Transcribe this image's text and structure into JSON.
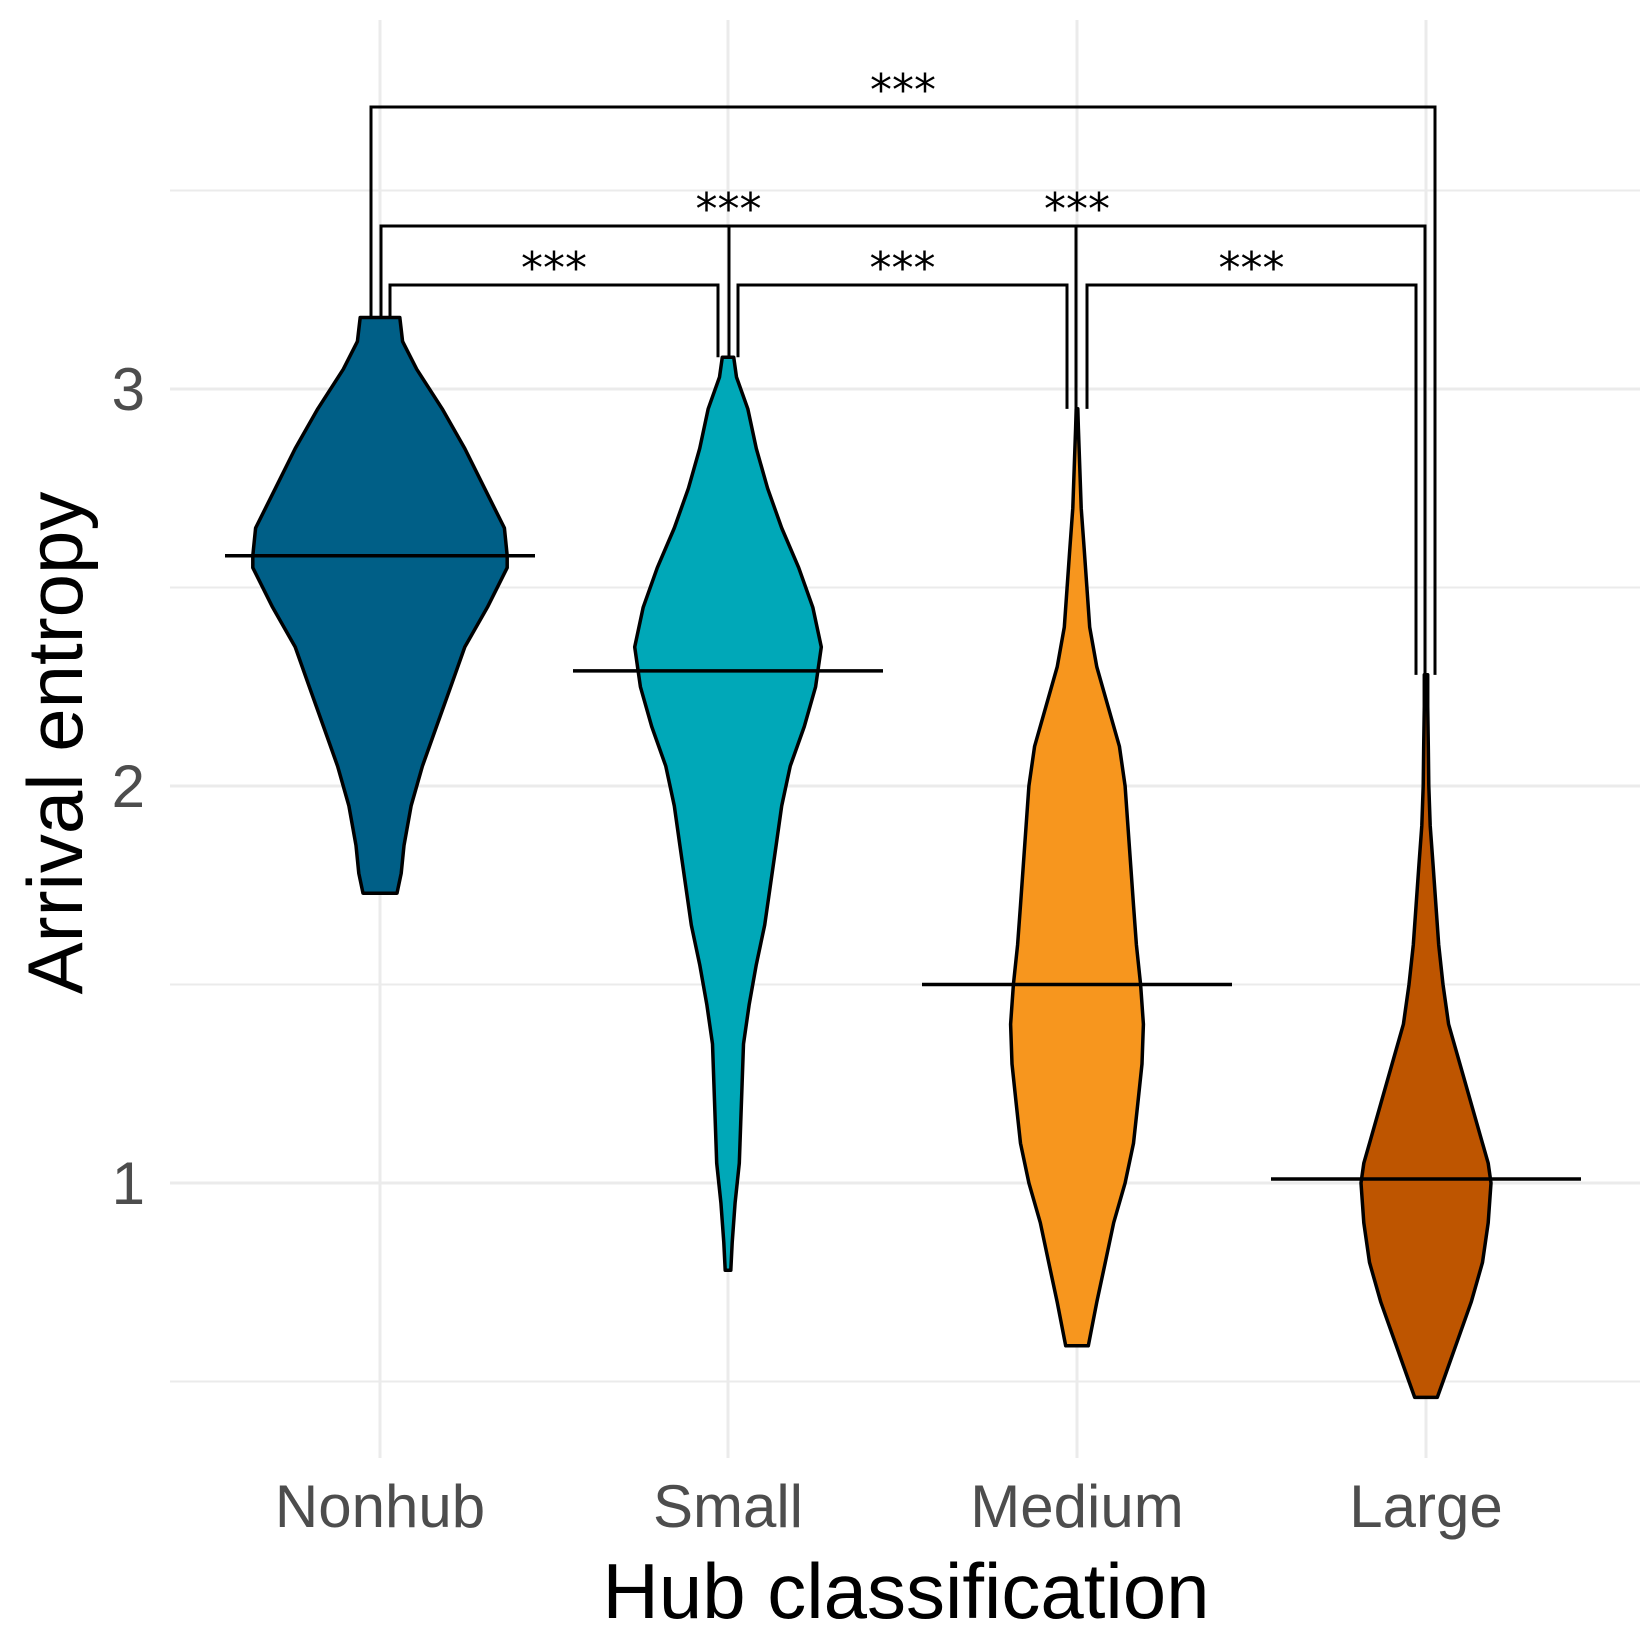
{
  "chart_data": {
    "type": "violin",
    "xlabel": "Hub classification",
    "ylabel": "Arrival entropy",
    "categories": [
      "Nonhub",
      "Small",
      "Medium",
      "Large"
    ],
    "ylim": [
      0.35,
      3.55
    ],
    "yticks": [
      1,
      2,
      3
    ],
    "grid": true,
    "series": [
      {
        "category": "Nonhub",
        "color": "#005f87",
        "min": 1.73,
        "max": 3.18,
        "median_line": 2.58,
        "profile": [
          [
            1.73,
            0.06
          ],
          [
            1.78,
            0.075
          ],
          [
            1.85,
            0.085
          ],
          [
            1.95,
            0.11
          ],
          [
            2.05,
            0.15
          ],
          [
            2.15,
            0.2
          ],
          [
            2.25,
            0.25
          ],
          [
            2.35,
            0.3
          ],
          [
            2.45,
            0.38
          ],
          [
            2.55,
            0.45
          ],
          [
            2.58,
            0.45
          ],
          [
            2.65,
            0.44
          ],
          [
            2.75,
            0.37
          ],
          [
            2.85,
            0.3
          ],
          [
            2.95,
            0.22
          ],
          [
            3.05,
            0.13
          ],
          [
            3.12,
            0.08
          ],
          [
            3.18,
            0.07
          ]
        ]
      },
      {
        "category": "Small",
        "color": "#00a8b8",
        "min": 0.78,
        "max": 3.08,
        "median_line": 2.29,
        "profile": [
          [
            0.78,
            0.01
          ],
          [
            0.85,
            0.015
          ],
          [
            0.95,
            0.025
          ],
          [
            1.05,
            0.04
          ],
          [
            1.15,
            0.045
          ],
          [
            1.25,
            0.05
          ],
          [
            1.35,
            0.055
          ],
          [
            1.45,
            0.075
          ],
          [
            1.55,
            0.1
          ],
          [
            1.65,
            0.13
          ],
          [
            1.75,
            0.15
          ],
          [
            1.85,
            0.17
          ],
          [
            1.95,
            0.19
          ],
          [
            2.05,
            0.22
          ],
          [
            2.15,
            0.27
          ],
          [
            2.25,
            0.31
          ],
          [
            2.35,
            0.33
          ],
          [
            2.45,
            0.3
          ],
          [
            2.55,
            0.25
          ],
          [
            2.65,
            0.19
          ],
          [
            2.75,
            0.14
          ],
          [
            2.85,
            0.1
          ],
          [
            2.95,
            0.07
          ],
          [
            3.03,
            0.03
          ],
          [
            3.08,
            0.02
          ]
        ]
      },
      {
        "category": "Medium",
        "color": "#f7961e",
        "min": 0.59,
        "max": 2.95,
        "median_line": 1.5,
        "profile": [
          [
            0.59,
            0.04
          ],
          [
            0.7,
            0.07
          ],
          [
            0.8,
            0.1
          ],
          [
            0.9,
            0.13
          ],
          [
            1.0,
            0.17
          ],
          [
            1.1,
            0.2
          ],
          [
            1.2,
            0.215
          ],
          [
            1.3,
            0.23
          ],
          [
            1.4,
            0.235
          ],
          [
            1.5,
            0.225
          ],
          [
            1.6,
            0.21
          ],
          [
            1.7,
            0.2
          ],
          [
            1.8,
            0.19
          ],
          [
            1.9,
            0.18
          ],
          [
            2.0,
            0.17
          ],
          [
            2.1,
            0.15
          ],
          [
            2.2,
            0.11
          ],
          [
            2.3,
            0.07
          ],
          [
            2.4,
            0.045
          ],
          [
            2.5,
            0.035
          ],
          [
            2.6,
            0.025
          ],
          [
            2.7,
            0.015
          ],
          [
            2.8,
            0.01
          ],
          [
            2.9,
            0.005
          ],
          [
            2.95,
            0.003
          ]
        ]
      },
      {
        "category": "Large",
        "color": "#be5500",
        "min": 0.46,
        "max": 2.28,
        "median_line": 1.01,
        "profile": [
          [
            0.46,
            0.04
          ],
          [
            0.5,
            0.06
          ],
          [
            0.6,
            0.11
          ],
          [
            0.7,
            0.16
          ],
          [
            0.8,
            0.2
          ],
          [
            0.9,
            0.22
          ],
          [
            1.0,
            0.23
          ],
          [
            1.05,
            0.22
          ],
          [
            1.1,
            0.2
          ],
          [
            1.2,
            0.16
          ],
          [
            1.3,
            0.12
          ],
          [
            1.4,
            0.08
          ],
          [
            1.5,
            0.06
          ],
          [
            1.6,
            0.045
          ],
          [
            1.7,
            0.035
          ],
          [
            1.8,
            0.025
          ],
          [
            1.9,
            0.015
          ],
          [
            2.0,
            0.01
          ],
          [
            2.1,
            0.008
          ],
          [
            2.2,
            0.006
          ],
          [
            2.28,
            0.006
          ]
        ]
      }
    ],
    "comparisons": [
      {
        "from": "Nonhub",
        "to": "Small",
        "label": "***"
      },
      {
        "from": "Small",
        "to": "Medium",
        "label": "***"
      },
      {
        "from": "Medium",
        "to": "Large",
        "label": "***"
      },
      {
        "from": "Nonhub",
        "to": "Medium",
        "label": "***"
      },
      {
        "from": "Small",
        "to": "Large",
        "label": "***"
      },
      {
        "from": "Nonhub",
        "to": "Large",
        "label": "***"
      }
    ]
  }
}
